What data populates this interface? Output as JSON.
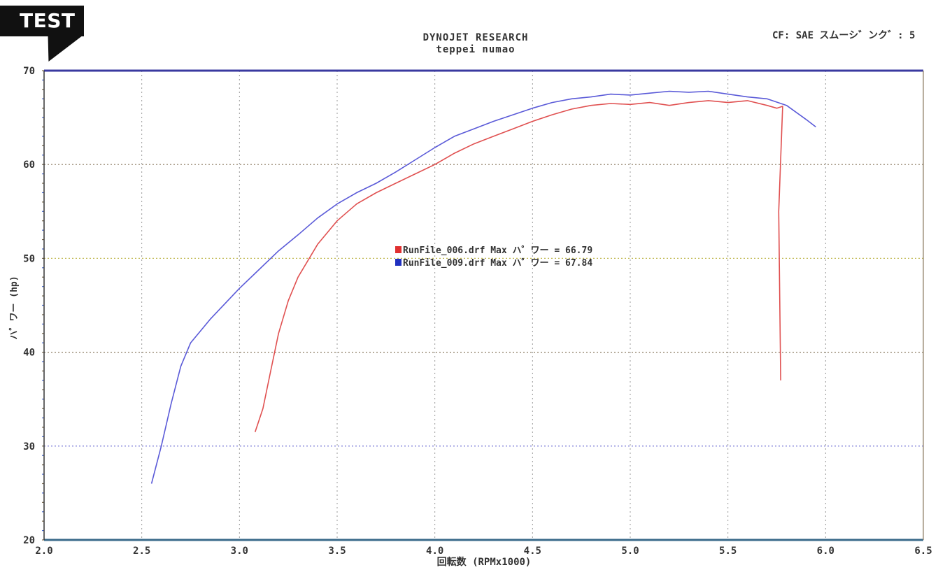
{
  "badge": {
    "label": "TEST"
  },
  "header": {
    "title": "DYNOJET RESEARCH",
    "subtitle": "teppei numao",
    "cf_label": "CF: SAE スムーシ゛ンク゛: 5"
  },
  "colors": {
    "run1": "#e05050",
    "run1_marker": "#e03030",
    "run2": "#5a5ad8",
    "run2_marker": "#2030c0",
    "grid": "#9a9a9a",
    "axis": "#333333"
  },
  "chart_data": {
    "type": "line",
    "title": "DYNOJET RESEARCH",
    "subtitle": "teppei numao",
    "xlabel": "回転数 (RPMx1000)",
    "ylabel": "ハ゜ワー (hp)",
    "xlim": [
      2.0,
      6.5
    ],
    "ylim": [
      20,
      70
    ],
    "x_ticks": [
      "2.0",
      "2.5",
      "3.0",
      "3.5",
      "4.0",
      "4.5",
      "5.0",
      "5.5",
      "6.0",
      "6.5"
    ],
    "y_ticks": [
      "20",
      "30",
      "40",
      "50",
      "60",
      "70"
    ],
    "grid": true,
    "legend": [
      "RunFile_006.drf Max ハ゜ワー = 66.79",
      "RunFile_009.drf Max ハ゜ワー = 67.84"
    ],
    "series": [
      {
        "name": "RunFile_006.drf",
        "points": [
          [
            3.08,
            31.5
          ],
          [
            3.12,
            34.0
          ],
          [
            3.16,
            38.0
          ],
          [
            3.2,
            42.0
          ],
          [
            3.25,
            45.5
          ],
          [
            3.3,
            48.0
          ],
          [
            3.4,
            51.5
          ],
          [
            3.5,
            54.0
          ],
          [
            3.6,
            55.8
          ],
          [
            3.7,
            57.0
          ],
          [
            3.8,
            58.0
          ],
          [
            3.9,
            59.0
          ],
          [
            4.0,
            60.0
          ],
          [
            4.1,
            61.2
          ],
          [
            4.2,
            62.2
          ],
          [
            4.3,
            63.0
          ],
          [
            4.4,
            63.8
          ],
          [
            4.5,
            64.6
          ],
          [
            4.6,
            65.3
          ],
          [
            4.7,
            65.9
          ],
          [
            4.8,
            66.3
          ],
          [
            4.9,
            66.5
          ],
          [
            5.0,
            66.4
          ],
          [
            5.1,
            66.6
          ],
          [
            5.2,
            66.3
          ],
          [
            5.3,
            66.6
          ],
          [
            5.4,
            66.8
          ],
          [
            5.5,
            66.6
          ],
          [
            5.6,
            66.8
          ],
          [
            5.7,
            66.3
          ],
          [
            5.75,
            66.0
          ],
          [
            5.78,
            66.2
          ],
          [
            5.76,
            55.0
          ],
          [
            5.77,
            37.0
          ]
        ]
      },
      {
        "name": "RunFile_009.drf",
        "points": [
          [
            2.55,
            26.0
          ],
          [
            2.6,
            30.0
          ],
          [
            2.65,
            34.5
          ],
          [
            2.7,
            38.5
          ],
          [
            2.75,
            41.0
          ],
          [
            2.85,
            43.5
          ],
          [
            3.0,
            46.8
          ],
          [
            3.1,
            48.8
          ],
          [
            3.2,
            50.8
          ],
          [
            3.3,
            52.5
          ],
          [
            3.4,
            54.3
          ],
          [
            3.5,
            55.8
          ],
          [
            3.6,
            57.0
          ],
          [
            3.7,
            58.0
          ],
          [
            3.8,
            59.2
          ],
          [
            3.9,
            60.5
          ],
          [
            4.0,
            61.8
          ],
          [
            4.1,
            63.0
          ],
          [
            4.2,
            63.8
          ],
          [
            4.3,
            64.6
          ],
          [
            4.4,
            65.3
          ],
          [
            4.5,
            66.0
          ],
          [
            4.6,
            66.6
          ],
          [
            4.7,
            67.0
          ],
          [
            4.8,
            67.2
          ],
          [
            4.9,
            67.5
          ],
          [
            5.0,
            67.4
          ],
          [
            5.1,
            67.6
          ],
          [
            5.2,
            67.8
          ],
          [
            5.3,
            67.7
          ],
          [
            5.4,
            67.8
          ],
          [
            5.5,
            67.5
          ],
          [
            5.6,
            67.2
          ],
          [
            5.7,
            67.0
          ],
          [
            5.8,
            66.3
          ],
          [
            5.9,
            64.8
          ],
          [
            5.95,
            64.0
          ]
        ]
      }
    ]
  }
}
